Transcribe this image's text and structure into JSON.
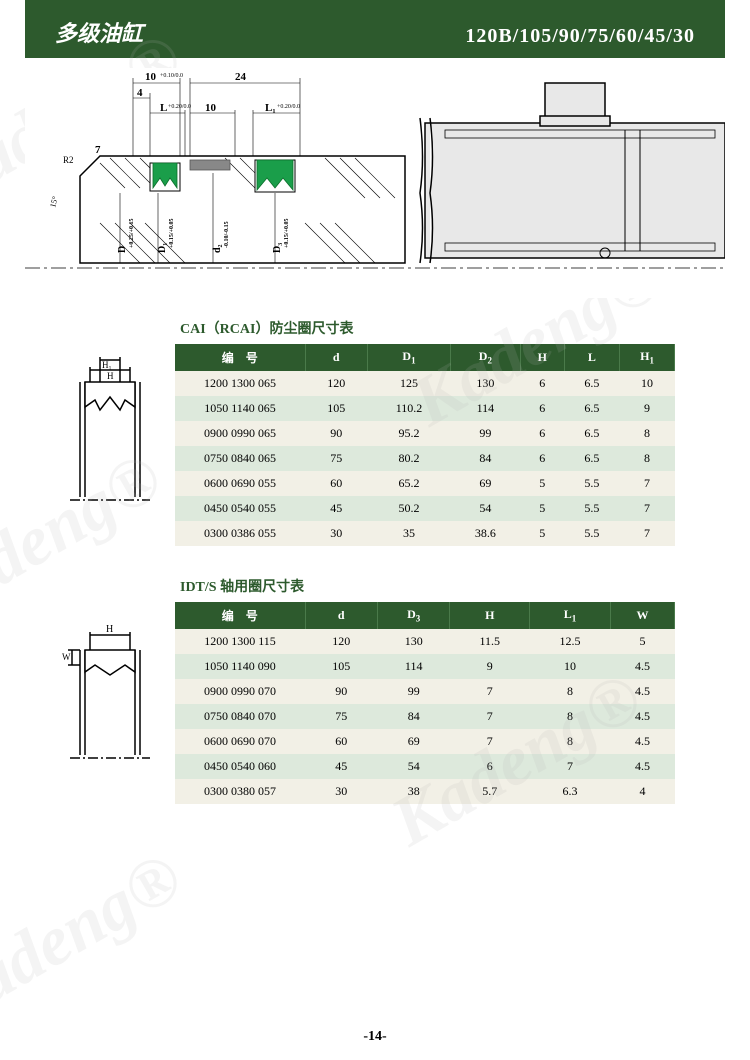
{
  "header": {
    "title_cn": "多级油缸",
    "model": "120B/105/90/75/60/45/30"
  },
  "diagram": {
    "dims": {
      "w10": "10",
      "w10_tol": "+0.10/0.0",
      "w24": "24",
      "w4": "4",
      "L": "L",
      "L_tol": "+0.20/0.0",
      "gap10": "10",
      "L1": "L₁",
      "L1_tol": "+0.20/0.0",
      "r2": "R2",
      "t7": "7",
      "ang15": "15°",
      "D": "D",
      "D_tol": "+0.25/+0.15",
      "D1": "D₁",
      "D1_tol": "+0.15/+0.05",
      "d2": "d₂",
      "d2_tol": "-0.10/-0.15",
      "D3": "D₃",
      "D3_tol": "+0.15/+0.05"
    },
    "seal_colors": {
      "green": "#1a9e4a",
      "gray": "#888888"
    }
  },
  "table1": {
    "title": "CAI（RCAI）防尘圈尺寸表",
    "headers": [
      "编　号",
      "d",
      "D₁",
      "D₂",
      "H",
      "L",
      "H₁"
    ],
    "rows": [
      [
        "1200 1300 065",
        "120",
        "125",
        "130",
        "6",
        "6.5",
        "10"
      ],
      [
        "1050 1140 065",
        "105",
        "110.2",
        "114",
        "6",
        "6.5",
        "9"
      ],
      [
        "0900 0990 065",
        "90",
        "95.2",
        "99",
        "6",
        "6.5",
        "8"
      ],
      [
        "0750 0840 065",
        "75",
        "80.2",
        "84",
        "6",
        "6.5",
        "8"
      ],
      [
        "0600 0690 055",
        "60",
        "65.2",
        "69",
        "5",
        "5.5",
        "7"
      ],
      [
        "0450 0540 055",
        "45",
        "50.2",
        "54",
        "5",
        "5.5",
        "7"
      ],
      [
        "0300 0386 055",
        "30",
        "35",
        "38.6",
        "5",
        "5.5",
        "7"
      ]
    ],
    "icon_labels": {
      "H1": "H₁",
      "H": "H"
    }
  },
  "table2": {
    "title": "IDT/S 轴用圈尺寸表",
    "headers": [
      "编　号",
      "d",
      "D₃",
      "H",
      "L₁",
      "W"
    ],
    "rows": [
      [
        "1200 1300 115",
        "120",
        "130",
        "11.5",
        "12.5",
        "5"
      ],
      [
        "1050 1140 090",
        "105",
        "114",
        "9",
        "10",
        "4.5"
      ],
      [
        "0900 0990 070",
        "90",
        "99",
        "7",
        "8",
        "4.5"
      ],
      [
        "0750 0840 070",
        "75",
        "84",
        "7",
        "8",
        "4.5"
      ],
      [
        "0600 0690 070",
        "60",
        "69",
        "7",
        "8",
        "4.5"
      ],
      [
        "0450 0540 060",
        "45",
        "54",
        "6",
        "7",
        "4.5"
      ],
      [
        "0300 0380 057",
        "30",
        "38",
        "5.7",
        "6.3",
        "4"
      ]
    ],
    "icon_labels": {
      "H": "H",
      "W": "W"
    }
  },
  "page_number": "-14-",
  "watermark_text": "Kadeng®",
  "colors": {
    "header_bg": "#2d5a2d",
    "row_alt": "#dde9dc",
    "row_norm": "#f2f0e6"
  }
}
